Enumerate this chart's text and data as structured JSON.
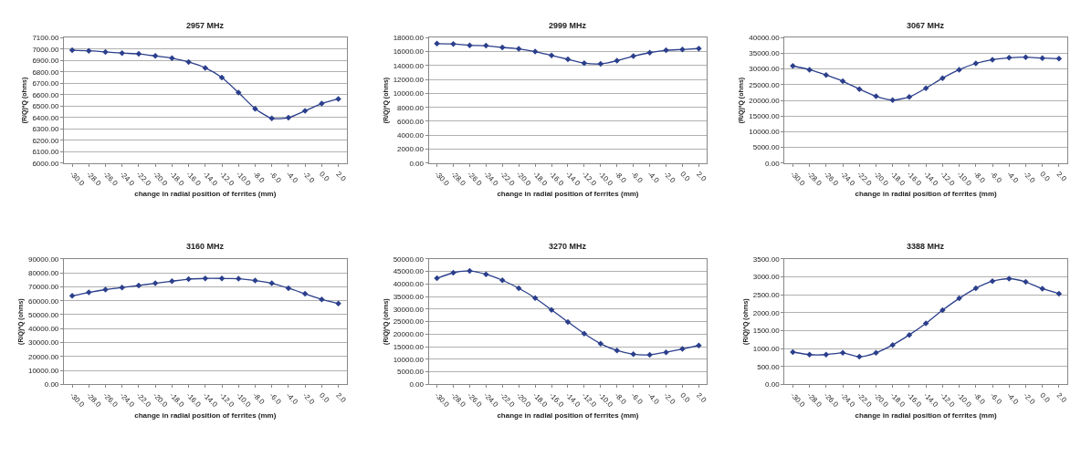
{
  "chart_data": [
    {
      "type": "line",
      "title": "2957 MHz",
      "xlabel": "change in radial position of ferrites (mm)",
      "ylabel": "(R/Q)*Q (ohms)",
      "categories": [
        "-30.0",
        "-28.0",
        "-26.0",
        "-24.0",
        "-22.0",
        "-20.0",
        "-18.0",
        "-16.0",
        "-14.0",
        "-12.0",
        "-10.0",
        "-8.0",
        "-6.0",
        "-4.0",
        "-2.0",
        "0.0",
        "2.0"
      ],
      "series": [
        {
          "color": "#2b3f8c",
          "values": [
            6990,
            6985,
            6975,
            6965,
            6958,
            6940,
            6920,
            6887,
            6835,
            6750,
            6618,
            6477,
            6392,
            6398,
            6458,
            6522,
            6563
          ]
        }
      ],
      "ylim": [
        6000,
        7100
      ],
      "yticks": [
        {
          "value": 6000,
          "label": "6000.00"
        },
        {
          "value": 6100,
          "label": "6100.00"
        },
        {
          "value": 6200,
          "label": "6200.00"
        },
        {
          "value": 6300,
          "label": "6300.00"
        },
        {
          "value": 6400,
          "label": "6400.00"
        },
        {
          "value": 6500,
          "label": "6500.00"
        },
        {
          "value": 6600,
          "label": "6600.00"
        },
        {
          "value": 6700,
          "label": "6700.00"
        },
        {
          "value": 6800,
          "label": "6800.00"
        },
        {
          "value": 6900,
          "label": "6900.00"
        },
        {
          "value": 7000,
          "label": "7000.00"
        },
        {
          "value": 7100,
          "label": "7100.00"
        }
      ],
      "grid": "y",
      "marker": "diamond"
    },
    {
      "type": "line",
      "title": "2999 MHz",
      "xlabel": "change in radial position of ferrites (mm)",
      "ylabel": "(R/Q)*Q (ohms)",
      "categories": [
        "-30.0",
        "-28.0",
        "-26.0",
        "-24.0",
        "-22.0",
        "-20.0",
        "-18.0",
        "-16.0",
        "-14.0",
        "-12.0",
        "-10.0",
        "-8.0",
        "-6.0",
        "-4.0",
        "-2.0",
        "0.0",
        "2.0"
      ],
      "series": [
        {
          "color": "#2b3f8c",
          "values": [
            17150,
            17100,
            16900,
            16850,
            16600,
            16400,
            16000,
            15450,
            14900,
            14350,
            14250,
            14700,
            15350,
            15850,
            16200,
            16300,
            16450
          ]
        }
      ],
      "ylim": [
        0,
        18000
      ],
      "yticks": [
        {
          "value": 0,
          "label": "0.00"
        },
        {
          "value": 2000,
          "label": "2000.00"
        },
        {
          "value": 4000,
          "label": "4000.00"
        },
        {
          "value": 6000,
          "label": "6000.00"
        },
        {
          "value": 8000,
          "label": "8000.00"
        },
        {
          "value": 10000,
          "label": "10000.00"
        },
        {
          "value": 12000,
          "label": "12000.00"
        },
        {
          "value": 14000,
          "label": "14000.00"
        },
        {
          "value": 16000,
          "label": "16000.00"
        },
        {
          "value": 18000,
          "label": "18000.00"
        }
      ],
      "grid": "y",
      "marker": "diamond"
    },
    {
      "type": "line",
      "title": "3067 MHz",
      "xlabel": "change in radial position of ferrites (mm)",
      "ylabel": "(R/Q)*Q (ohms)",
      "categories": [
        "-30.0",
        "-28.0",
        "-26.0",
        "-24.0",
        "-22.0",
        "-20.0",
        "-18.0",
        "-16.0",
        "-14.0",
        "-12.0",
        "-10.0",
        "-8.0",
        "-6.0",
        "-4.0",
        "-2.0",
        "0.0",
        "2.0"
      ],
      "series": [
        {
          "color": "#2b3f8c",
          "values": [
            31000,
            29800,
            28100,
            26100,
            23600,
            21300,
            20100,
            21100,
            23900,
            27100,
            29800,
            31800,
            33000,
            33600,
            33800,
            33500,
            33300
          ]
        }
      ],
      "ylim": [
        0,
        40000
      ],
      "yticks": [
        {
          "value": 0,
          "label": "0.00"
        },
        {
          "value": 5000,
          "label": "5000.00"
        },
        {
          "value": 10000,
          "label": "10000.00"
        },
        {
          "value": 15000,
          "label": "15000.00"
        },
        {
          "value": 20000,
          "label": "20000.00"
        },
        {
          "value": 25000,
          "label": "25000.00"
        },
        {
          "value": 30000,
          "label": "30000.00"
        },
        {
          "value": 35000,
          "label": "35000.00"
        },
        {
          "value": 40000,
          "label": "40000.00"
        }
      ],
      "grid": "y",
      "marker": "diamond"
    },
    {
      "type": "line",
      "title": "3160 MHz",
      "xlabel": "change in radial position of ferrites (mm)",
      "ylabel": "(R/Q)*Q (ohms)",
      "categories": [
        "-30.0",
        "-28.0",
        "-26.0",
        "-24.0",
        "-22.0",
        "-20.0",
        "-18.0",
        "-16.0",
        "-14.0",
        "-12.0",
        "-10.0",
        "-8.0",
        "-6.0",
        "-4.0",
        "-2.0",
        "0.0",
        "2.0"
      ],
      "series": [
        {
          "color": "#2b3f8c",
          "values": [
            63500,
            66000,
            68000,
            69500,
            71000,
            72500,
            74000,
            75500,
            76000,
            76000,
            75800,
            74500,
            72500,
            69000,
            65000,
            61000,
            58000
          ]
        }
      ],
      "ylim": [
        0,
        90000
      ],
      "yticks": [
        {
          "value": 0,
          "label": "0.00"
        },
        {
          "value": 10000,
          "label": "10000.00"
        },
        {
          "value": 20000,
          "label": "20000.00"
        },
        {
          "value": 30000,
          "label": "30000.00"
        },
        {
          "value": 40000,
          "label": "40000.00"
        },
        {
          "value": 50000,
          "label": "50000.00"
        },
        {
          "value": 60000,
          "label": "60000.00"
        },
        {
          "value": 70000,
          "label": "70000.00"
        },
        {
          "value": 80000,
          "label": "80000.00"
        },
        {
          "value": 90000,
          "label": "90000.00"
        }
      ],
      "grid": "y",
      "marker": "diamond"
    },
    {
      "type": "line",
      "title": "3270 MHz",
      "xlabel": "change in radial position of ferrites (mm)",
      "ylabel": "(R/Q)*Q (ohms)",
      "categories": [
        "-30.0",
        "-28.0",
        "-26.0",
        "-24.0",
        "-22.0",
        "-20.0",
        "-18.0",
        "-16.0",
        "-14.0",
        "-12.0",
        "-10.0",
        "-8.0",
        "-6.0",
        "-4.0",
        "-2.0",
        "0.0",
        "2.0"
      ],
      "series": [
        {
          "color": "#2b3f8c",
          "values": [
            42300,
            44500,
            45200,
            43900,
            41500,
            38300,
            34400,
            29700,
            24900,
            20200,
            16200,
            13500,
            12000,
            11800,
            12800,
            14100,
            15500
          ]
        }
      ],
      "ylim": [
        0,
        50000
      ],
      "yticks": [
        {
          "value": 0,
          "label": "0.00"
        },
        {
          "value": 5000,
          "label": "5000.00"
        },
        {
          "value": 10000,
          "label": "10000.00"
        },
        {
          "value": 15000,
          "label": "15000.00"
        },
        {
          "value": 20000,
          "label": "20000.00"
        },
        {
          "value": 25000,
          "label": "25000.00"
        },
        {
          "value": 30000,
          "label": "30000.00"
        },
        {
          "value": 35000,
          "label": "35000.00"
        },
        {
          "value": 40000,
          "label": "40000.00"
        },
        {
          "value": 45000,
          "label": "45000.00"
        },
        {
          "value": 50000,
          "label": "50000.00"
        }
      ],
      "grid": "y",
      "marker": "diamond"
    },
    {
      "type": "line",
      "title": "3388 MHz",
      "xlabel": "change in radial position of ferrites (mm)",
      "ylabel": "(R/Q)*Q (ohms)",
      "categories": [
        "-30.0",
        "-28.0",
        "-26.0",
        "-24.0",
        "-22.0",
        "-20.0",
        "-18.0",
        "-16.0",
        "-14.0",
        "-12.0",
        "-10.0",
        "-8.0",
        "-6.0",
        "-4.0",
        "-2.0",
        "0.0",
        "2.0"
      ],
      "series": [
        {
          "color": "#2b3f8c",
          "values": [
            900,
            830,
            830,
            880,
            770,
            880,
            1100,
            1380,
            1700,
            2070,
            2400,
            2680,
            2880,
            2950,
            2860,
            2670,
            2530
          ]
        }
      ],
      "ylim": [
        0,
        3500
      ],
      "yticks": [
        {
          "value": 0,
          "label": "0.00"
        },
        {
          "value": 500,
          "label": "500.00"
        },
        {
          "value": 1000,
          "label": "1000.00"
        },
        {
          "value": 1500,
          "label": "1500.00"
        },
        {
          "value": 2000,
          "label": "2000.00"
        },
        {
          "value": 2500,
          "label": "2500.00"
        },
        {
          "value": 3000,
          "label": "3000.00"
        },
        {
          "value": 3500,
          "label": "3500.00"
        }
      ],
      "grid": "y",
      "marker": "diamond"
    }
  ]
}
